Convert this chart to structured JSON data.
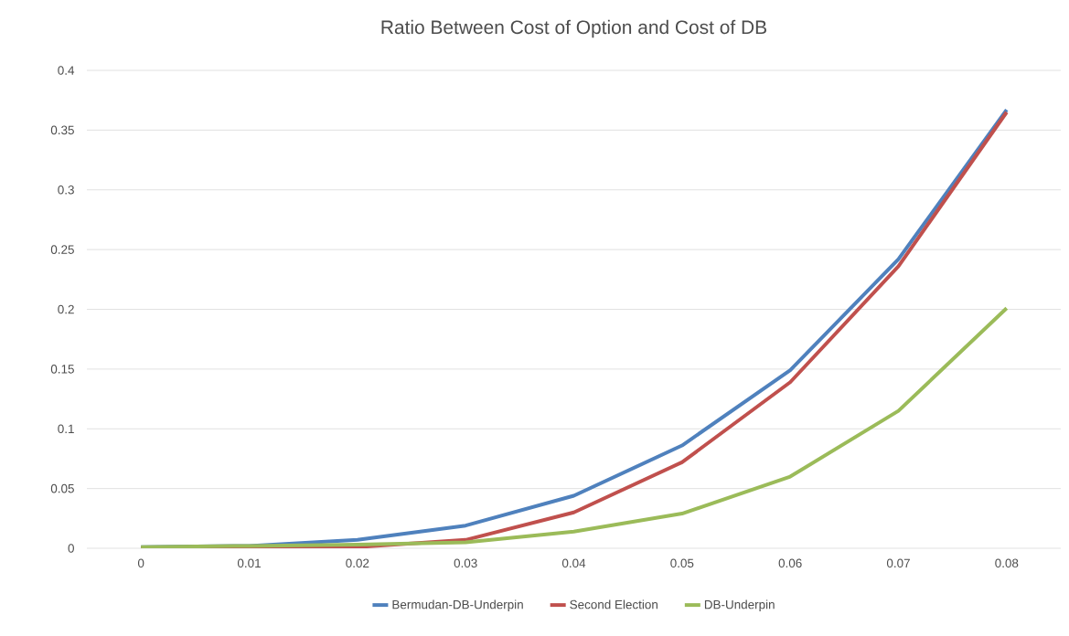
{
  "chart_data": {
    "type": "line",
    "title": "Ratio Between Cost of Option and Cost of DB",
    "categories": [
      "0",
      "0.01",
      "0.02",
      "0.03",
      "0.04",
      "0.05",
      "0.06",
      "0.07",
      "0.08"
    ],
    "series": [
      {
        "name": "Bermudan-DB-Underpin",
        "color": "#4f81bd",
        "values": [
          0.001,
          0.002,
          0.007,
          0.019,
          0.044,
          0.086,
          0.149,
          0.242,
          0.367
        ]
      },
      {
        "name": "Second Election",
        "color": "#c0504d",
        "values": [
          0.0,
          0.001,
          0.001,
          0.007,
          0.03,
          0.072,
          0.139,
          0.236,
          0.365
        ]
      },
      {
        "name": "DB-Underpin",
        "color": "#9bbb59",
        "values": [
          0.001,
          0.002,
          0.003,
          0.005,
          0.014,
          0.029,
          0.06,
          0.115,
          0.201
        ]
      }
    ],
    "ylim": [
      0,
      0.4
    ],
    "yticks": [
      0,
      0.05,
      0.1,
      0.15,
      0.2,
      0.25,
      0.3,
      0.35,
      0.4
    ],
    "grid": "y",
    "legend": "bottom"
  }
}
